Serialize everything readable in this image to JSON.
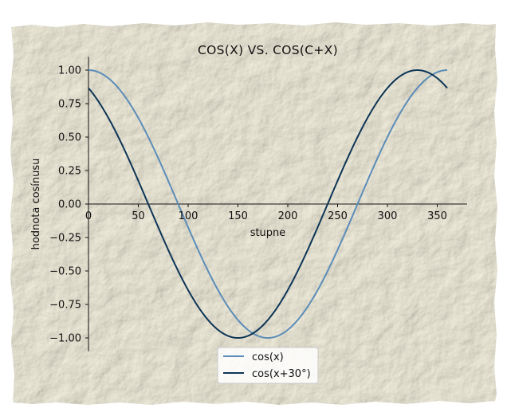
{
  "chart_data": {
    "type": "line",
    "title": "COS(X) VS. COS(C+X)",
    "xlabel": "stupne",
    "ylabel": "hodnota cosínusu",
    "xlim": [
      0,
      380
    ],
    "ylim": [
      -1.1,
      1.1
    ],
    "xticks": [
      0,
      50,
      100,
      150,
      200,
      250,
      300,
      350
    ],
    "xtick_labels": [
      "0",
      "50",
      "100",
      "150",
      "200",
      "250",
      "300",
      "350"
    ],
    "yticks": [
      1.0,
      0.75,
      0.5,
      0.25,
      0.0,
      -0.25,
      -0.5,
      -0.75,
      -1.0
    ],
    "ytick_labels": [
      "1.00",
      "0.75",
      "0.50",
      "0.25",
      "0.00",
      "−0.25",
      "−0.50",
      "−0.75",
      "−1.00"
    ],
    "x_range": [
      0,
      360
    ],
    "series": [
      {
        "name": "cos(x)",
        "function": "cos(x)",
        "phase_deg": 0,
        "color": "#5b8db8"
      },
      {
        "name": "cos(x+30°)",
        "function": "cos(x+30°)",
        "phase_deg": 30,
        "color": "#0d3556"
      }
    ],
    "legend_position": "bottom-center",
    "grid": false
  },
  "colors": {
    "paper": "#ede9d7",
    "paper_dark": "#dcd6bf",
    "axis": "#111111"
  }
}
